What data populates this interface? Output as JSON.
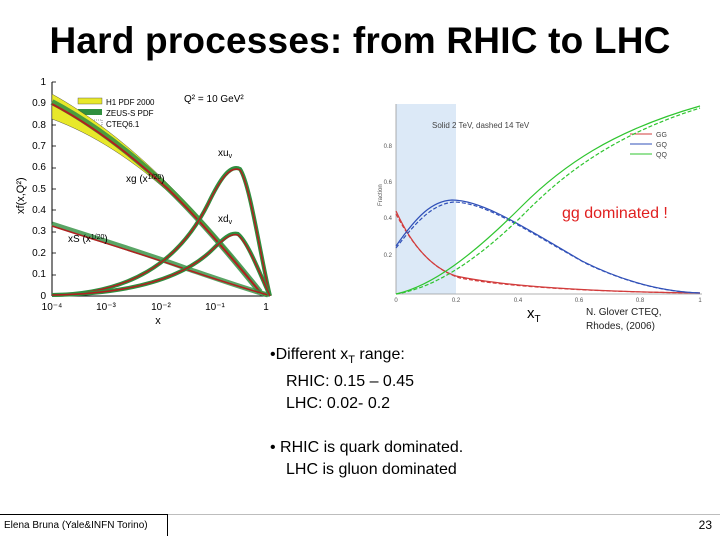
{
  "title": "Hard processes: from RHIC to LHC",
  "left_plot": {
    "legend": [
      "H1 PDF 2000",
      "ZEUS-S PDF",
      "CTEQ6.1"
    ],
    "q2_label": "Q² = 10 GeV²",
    "y_label": "xf(x,Q²)",
    "x_label": "x",
    "curve_labels": {
      "xuv": "xu",
      "xuv_sub": "v",
      "xdv": "xd",
      "xdv_sub": "v",
      "xg": "xg (x",
      "xg_frac": "1/20",
      "xs": "xS (x",
      "xs_frac": "1/20"
    },
    "y_ticks": [
      "1",
      "0.9",
      "0.8",
      "0.7",
      "0.6",
      "0.5",
      "0.4",
      "0.3",
      "0.2",
      "0.1",
      "0"
    ],
    "x_ticks": [
      "10⁻⁴",
      "10⁻³",
      "10⁻²",
      "10⁻¹",
      "1"
    ]
  },
  "right_plot": {
    "header": "Solid 2 TeV, dashed 14 TeV",
    "legend": [
      "GG",
      "GQ",
      "QQ"
    ],
    "annotation": "gg dominated !",
    "y_label": "Fraction",
    "x_axis_symbol": "x",
    "x_axis_sub": "T",
    "y_ticks": [
      "0.8",
      "0.6",
      "0.4",
      "0.2"
    ],
    "x_ticks": [
      "0",
      "0.2",
      "0.4",
      "0.6",
      "0.8",
      "1"
    ],
    "colors": {
      "gg": "#d23c3c",
      "gq": "#3050b8",
      "qq": "#2fc52f",
      "shade": "#dce9f7"
    }
  },
  "credit": {
    "line1": "N. Glover CTEQ,",
    "line2": "Rhodes, (2006)"
  },
  "bullets": {
    "b1": "•Different x",
    "b1_sub": "T",
    "b1_tail": " range:",
    "rhic_range": "RHIC: 0.15 – 0.45",
    "lhc_range": "LHC: 0.02- 0.2",
    "b2": "• RHIC is quark dominated.",
    "b2_line2": "LHC is gluon dominated"
  },
  "footer": {
    "author": "Elena Bruna (Yale&INFN Torino)",
    "page": "23"
  }
}
